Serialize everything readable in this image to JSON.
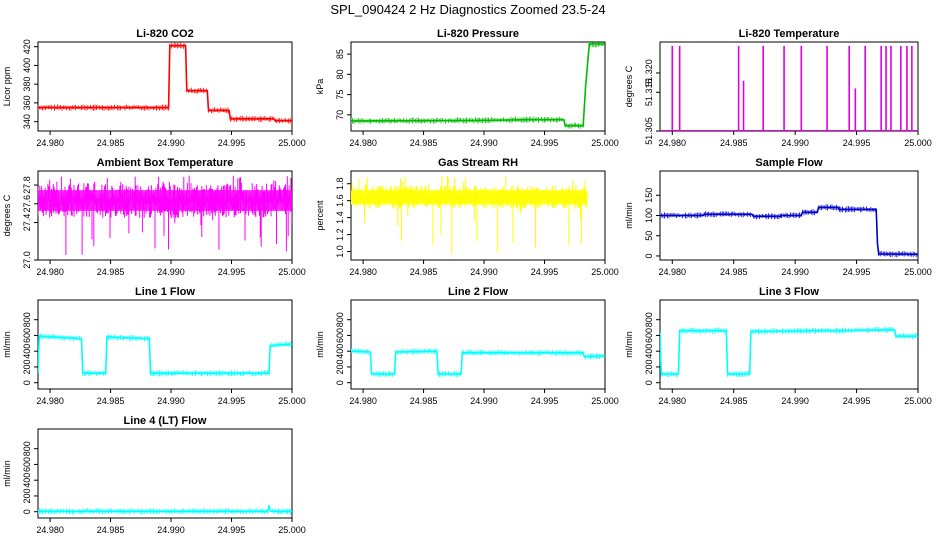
{
  "figure_title": "SPL_090424  2 Hz Diagnostics Zoomed 23.5-24",
  "x_ticks": [
    "24.980",
    "24.985",
    "24.990",
    "24.995",
    "25.000"
  ],
  "chart_data": [
    {
      "type": "line",
      "title": "Li-820 CO2",
      "ylabel": "Licor ppm",
      "color": "#ff0000",
      "xlim": [
        24.979,
        25.0
      ],
      "ylim": [
        330,
        425
      ],
      "yticks": [
        "340",
        "360",
        "380",
        "400",
        "420"
      ],
      "series": [
        {
          "x": [
            24.979,
            24.9898,
            24.9899,
            24.9912,
            24.9913,
            24.993,
            24.9931,
            24.9948,
            24.9949,
            24.9985,
            24.9986,
            25.0
          ],
          "y": [
            355,
            355,
            421,
            421,
            373,
            373,
            352,
            352,
            343,
            343,
            341,
            341
          ]
        }
      ]
    },
    {
      "type": "line",
      "title": "Li-820 Pressure",
      "ylabel": "kPa",
      "color": "#00bb00",
      "xlim": [
        24.979,
        25.0
      ],
      "ylim": [
        66,
        88
      ],
      "yticks": [
        "70",
        "75",
        "80",
        "85"
      ],
      "series": [
        {
          "x": [
            24.979,
            24.9895,
            24.9935,
            24.9966,
            24.9967,
            24.9982,
            24.9984,
            24.9987,
            25.0
          ],
          "y": [
            68.5,
            68.6,
            68.8,
            68.8,
            67.3,
            67.3,
            77,
            87.5,
            87.5
          ]
        }
      ]
    },
    {
      "type": "line",
      "title": "Li-820 Temperature",
      "ylabel": "degrees C",
      "color": "#e000e0",
      "xlim": [
        24.979,
        25.0
      ],
      "ylim": [
        51.305,
        51.328
      ],
      "yticks": [
        "51.305",
        "51.315",
        "51.320"
      ],
      "baseline": 51.305,
      "spikes": [
        {
          "x": 24.98,
          "y": 51.327
        },
        {
          "x": 24.9806,
          "y": 51.327
        },
        {
          "x": 24.9854,
          "y": 51.327
        },
        {
          "x": 24.9858,
          "y": 51.318
        },
        {
          "x": 24.9874,
          "y": 51.327
        },
        {
          "x": 24.9891,
          "y": 51.327
        },
        {
          "x": 24.9905,
          "y": 51.327
        },
        {
          "x": 24.9926,
          "y": 51.327
        },
        {
          "x": 24.9944,
          "y": 51.327
        },
        {
          "x": 24.9949,
          "y": 51.316
        },
        {
          "x": 24.9957,
          "y": 51.327
        },
        {
          "x": 24.997,
          "y": 51.327
        },
        {
          "x": 24.9974,
          "y": 51.327
        },
        {
          "x": 24.9978,
          "y": 51.327
        },
        {
          "x": 24.9986,
          "y": 51.327
        },
        {
          "x": 24.9991,
          "y": 51.327
        },
        {
          "x": 24.9995,
          "y": 51.327
        }
      ]
    },
    {
      "type": "line",
      "title": "Ambient Box Temperature",
      "ylabel": "degrees C",
      "color": "#ff00ff",
      "xlim": [
        24.979,
        25.0
      ],
      "ylim": [
        27.0,
        27.95
      ],
      "yticks": [
        "27.0",
        "27.4",
        "27.6",
        "27.8"
      ],
      "band": {
        "x": [
          24.979,
          25.0
        ],
        "low": 27.45,
        "high": 27.82,
        "min": 27.05,
        "max": 27.9
      }
    },
    {
      "type": "line",
      "title": "Gas Stream RH",
      "ylabel": "percent",
      "color": "#ffff00",
      "xlim": [
        24.979,
        25.0
      ],
      "ylim": [
        0.9,
        1.95
      ],
      "yticks": [
        "1.0",
        "1.2",
        "1.4",
        "1.6",
        "1.8"
      ],
      "band": {
        "x": [
          24.979,
          24.9985
        ],
        "low": 1.5,
        "high": 1.78,
        "min": 0.95,
        "max": 1.9
      }
    },
    {
      "type": "line",
      "title": "Sample Flow",
      "ylabel": "ml/min",
      "color": "#0000cc",
      "xlim": [
        24.979,
        25.0
      ],
      "ylim": [
        -10,
        210
      ],
      "yticks": [
        "0",
        "50",
        "100",
        "150"
      ],
      "series": [
        {
          "x": [
            24.979,
            24.9825,
            24.9826,
            24.9865,
            24.9866,
            24.9888,
            24.9889,
            24.9905,
            24.9906,
            24.9918,
            24.9919,
            24.9935,
            24.9936,
            24.9966,
            24.9967,
            24.9968,
            25.0
          ],
          "y": [
            100,
            100,
            103,
            103,
            98,
            98,
            100,
            100,
            108,
            108,
            120,
            120,
            115,
            115,
            30,
            5,
            4
          ]
        }
      ]
    },
    {
      "type": "line",
      "title": "Line 1 Flow",
      "ylabel": "ml/min",
      "color": "#00ffff",
      "xlim": [
        24.979,
        25.0
      ],
      "ylim": [
        -80,
        1050
      ],
      "yticks": [
        "0",
        "200",
        "400",
        "600",
        "800"
      ],
      "series": [
        {
          "x": [
            24.979,
            24.9791,
            24.9826,
            24.9827,
            24.9846,
            24.9847,
            24.9882,
            24.9883,
            24.9981,
            24.9982,
            25.0
          ],
          "y": [
            120,
            590,
            560,
            120,
            120,
            580,
            560,
            120,
            120,
            470,
            490
          ]
        }
      ]
    },
    {
      "type": "line",
      "title": "Line 2 Flow",
      "ylabel": "ml/min",
      "color": "#00ffff",
      "xlim": [
        24.979,
        25.0
      ],
      "ylim": [
        -80,
        1050
      ],
      "yticks": [
        "0",
        "200",
        "400",
        "600",
        "800"
      ],
      "series": [
        {
          "x": [
            24.979,
            24.9806,
            24.9807,
            24.9826,
            24.9827,
            24.9861,
            24.9862,
            24.9881,
            24.9882,
            24.9982,
            24.9983,
            25.0
          ],
          "y": [
            400,
            390,
            110,
            110,
            390,
            400,
            110,
            110,
            380,
            380,
            330,
            340
          ]
        }
      ]
    },
    {
      "type": "line",
      "title": "Line 3 Flow",
      "ylabel": "ml/min",
      "color": "#00ffff",
      "xlim": [
        24.979,
        25.0
      ],
      "ylim": [
        -80,
        1050
      ],
      "yticks": [
        "0",
        "200",
        "400",
        "600",
        "800"
      ],
      "series": [
        {
          "x": [
            24.979,
            24.9791,
            24.9805,
            24.9806,
            24.9844,
            24.9845,
            24.9863,
            24.9864,
            24.9981,
            24.9982,
            25.0
          ],
          "y": [
            640,
            110,
            110,
            660,
            660,
            110,
            110,
            650,
            670,
            590,
            590
          ]
        }
      ]
    },
    {
      "type": "line",
      "title": "Line 4 (LT) Flow",
      "ylabel": "ml/min",
      "color": "#00ffff",
      "xlim": [
        24.979,
        25.0
      ],
      "ylim": [
        -80,
        1050
      ],
      "yticks": [
        "0",
        "200",
        "400",
        "600",
        "800"
      ],
      "series": [
        {
          "x": [
            24.979,
            24.998,
            24.9981,
            24.9982,
            24.9984,
            25.0
          ],
          "y": [
            5,
            5,
            80,
            10,
            5,
            5
          ]
        }
      ]
    }
  ]
}
